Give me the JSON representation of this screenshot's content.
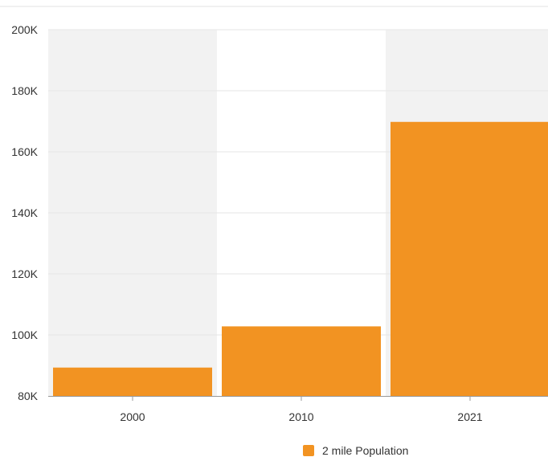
{
  "chart_data": {
    "type": "bar",
    "categories": [
      "2000",
      "2010",
      "2021"
    ],
    "series": [
      {
        "name": "2 mile Population",
        "values": [
          89300,
          102800,
          169800
        ]
      }
    ],
    "ylim": [
      80000,
      200000
    ],
    "yticks": [
      {
        "value": 80000,
        "label": "80K"
      },
      {
        "value": 100000,
        "label": "100K"
      },
      {
        "value": 120000,
        "label": "120K"
      },
      {
        "value": 140000,
        "label": "140K"
      },
      {
        "value": 160000,
        "label": "160K"
      },
      {
        "value": 180000,
        "label": "180K"
      },
      {
        "value": 200000,
        "label": "200K"
      }
    ],
    "title": "",
    "xlabel": "",
    "ylabel": "",
    "grid": true,
    "legend_position": "bottom-center",
    "colors": {
      "bar": "#f29322",
      "band": "#f2f2f2",
      "grid": "#e6e6e6",
      "axis": "#999999",
      "top_rule": "#e0e0e0"
    }
  }
}
